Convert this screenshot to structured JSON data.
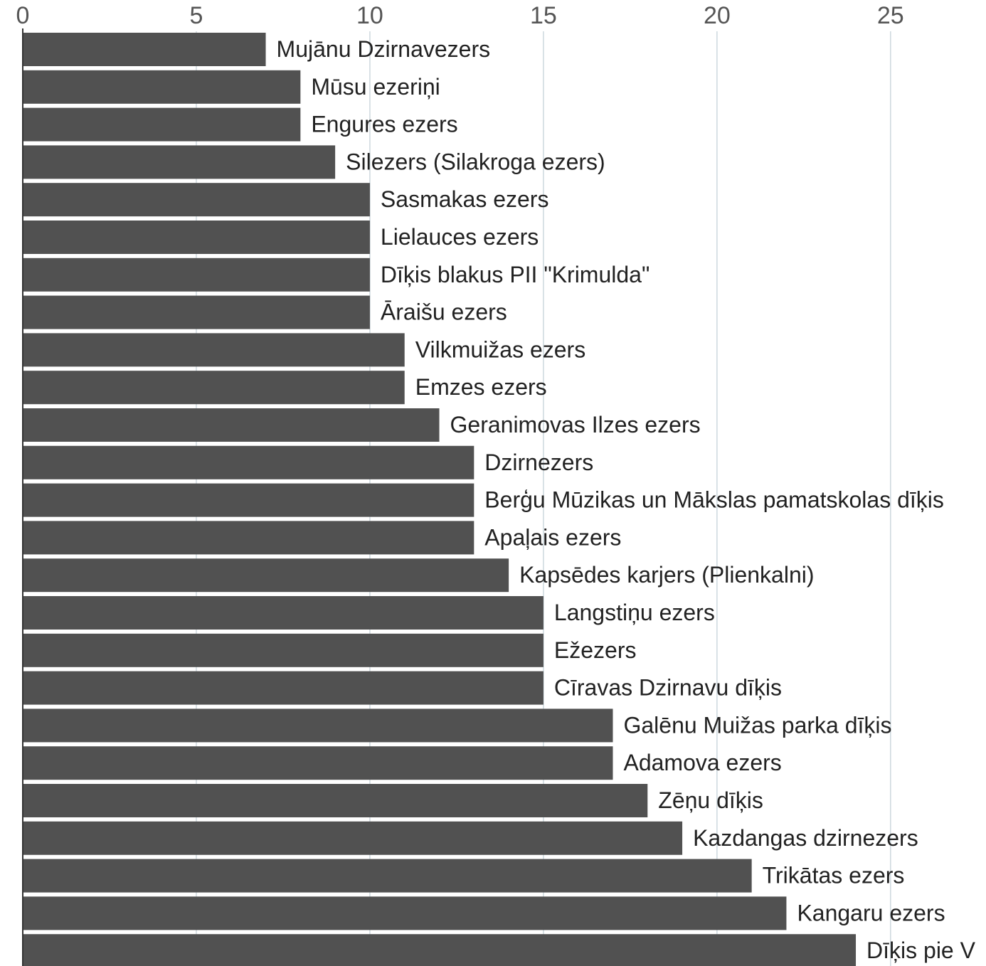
{
  "chart_data": {
    "type": "barh",
    "categories": [
      "Mujānu Dzirnavezers",
      "Mūsu ezeriņi",
      "Engures ezers",
      "Silezers (Silakroga ezers)",
      "Sasmakas ezers",
      "Lielauces ezers",
      "Dīķis blakus PII \"Krimulda\"",
      "Āraišu ezers",
      "Vilkmuižas ezers",
      "Emzes ezers",
      "Geranimovas Ilzes ezers",
      "Dzirnezers",
      "Berģu Mūzikas un Mākslas pamatskolas dīķis",
      "Apaļais ezers",
      "Kapsēdes karjers (Plienkalni)",
      "Langstiņu ezers",
      "Ežezers",
      "Cīravas Dzirnavu dīķis",
      "Galēnu Muižas parka dīķis",
      "Adamova ezers",
      "Zēņu dīķis",
      "Kazdangas dzirnezers",
      "Trikātas ezers",
      "Kangaru ezers",
      "Dīķis pie V"
    ],
    "values": [
      7,
      8,
      8,
      9,
      10,
      10,
      10,
      10,
      11,
      11,
      12,
      13,
      13,
      13,
      14,
      15,
      15,
      15,
      17,
      17,
      18,
      19,
      21,
      22,
      24
    ],
    "color": "#515151",
    "xlim": [
      0,
      27.75
    ],
    "xticks": [
      0,
      5,
      10,
      15,
      20,
      25
    ],
    "grid": true
  }
}
